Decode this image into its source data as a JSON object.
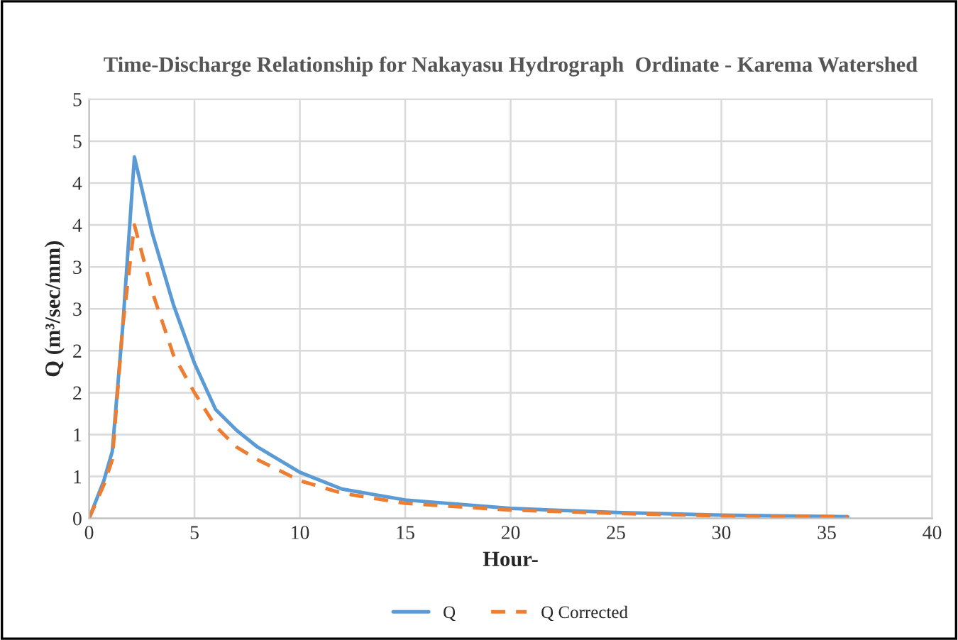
{
  "chart_data": {
    "type": "line",
    "title": "Time-Discharge Relationship for Nakayasu Hydrograph  Ordinate - Karema Watershed",
    "xlabel": "Hour-",
    "ylabel": "Q (m³/sec/mm)",
    "series": [
      {
        "name": "Q",
        "color": "#5b9bd5",
        "line_style": "solid",
        "x": [
          0,
          0.7,
          1.1,
          1.6,
          2.15,
          3,
          4,
          5,
          6,
          7,
          8,
          10,
          12,
          15,
          20,
          25,
          30,
          36
        ],
        "values": [
          0,
          0.45,
          0.8,
          2.3,
          4.31,
          3.4,
          2.55,
          1.85,
          1.3,
          1.05,
          0.85,
          0.55,
          0.35,
          0.22,
          0.12,
          0.07,
          0.04,
          0.02
        ]
      },
      {
        "name": "Q Corrected",
        "color": "#ed7d31",
        "line_style": "dashed",
        "x": [
          0,
          0.7,
          1.1,
          1.6,
          2.15,
          3,
          4,
          5,
          6,
          7,
          8,
          10,
          12,
          15,
          20,
          25,
          30,
          36
        ],
        "values": [
          0,
          0.4,
          0.7,
          2.3,
          3.5,
          2.7,
          1.95,
          1.5,
          1.1,
          0.85,
          0.7,
          0.45,
          0.3,
          0.18,
          0.1,
          0.06,
          0.03,
          0.02
        ]
      }
    ],
    "xlim": [
      0,
      40
    ],
    "xticks": [
      0,
      5,
      10,
      15,
      20,
      25,
      30,
      35,
      40
    ],
    "ylim": [
      0,
      5
    ],
    "yticks": [
      0,
      {
        "value": 0.5,
        "label": "1"
      },
      1,
      {
        "value": 1.5,
        "label": "2"
      },
      2,
      {
        "value": 2.5,
        "label": "3"
      },
      3,
      {
        "value": 3.5,
        "label": "4"
      },
      4,
      {
        "value": 4.5,
        "label": "5"
      },
      5
    ],
    "grid": true,
    "legend": "bottom",
    "marker": "none"
  }
}
